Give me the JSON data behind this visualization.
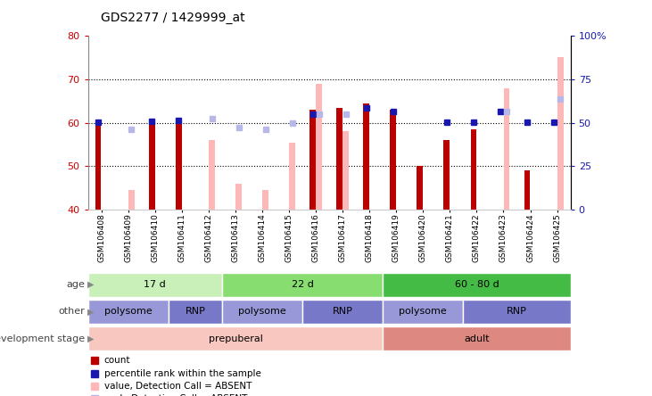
{
  "title": "GDS2277 / 1429999_at",
  "samples": [
    "GSM106408",
    "GSM106409",
    "GSM106410",
    "GSM106411",
    "GSM106412",
    "GSM106413",
    "GSM106414",
    "GSM106415",
    "GSM106416",
    "GSM106417",
    "GSM106418",
    "GSM106419",
    "GSM106420",
    "GSM106421",
    "GSM106422",
    "GSM106423",
    "GSM106424",
    "GSM106425"
  ],
  "count_values": [
    60.5,
    null,
    60.1,
    60.5,
    null,
    null,
    null,
    null,
    63.0,
    63.5,
    64.5,
    63.0,
    50.2,
    56.0,
    58.5,
    null,
    49.0,
    null
  ],
  "rank_values": [
    60.2,
    null,
    60.3,
    60.5,
    null,
    null,
    null,
    null,
    62.0,
    null,
    63.5,
    62.5,
    null,
    60.2,
    60.2,
    62.5,
    60.2,
    60.2
  ],
  "absent_value": [
    null,
    44.5,
    null,
    null,
    56.0,
    46.0,
    44.5,
    55.5,
    69.0,
    58.0,
    null,
    null,
    null,
    null,
    null,
    68.0,
    null,
    75.0
  ],
  "absent_rank": [
    null,
    58.5,
    null,
    null,
    61.0,
    59.0,
    58.5,
    60.0,
    62.0,
    62.0,
    null,
    null,
    null,
    null,
    null,
    62.5,
    null,
    65.5
  ],
  "ylim": [
    40,
    80
  ],
  "yticks": [
    40,
    50,
    60,
    70,
    80
  ],
  "right_yticks": [
    0,
    25,
    50,
    75,
    100
  ],
  "right_ylim": [
    0,
    100
  ],
  "dotted_lines": [
    50,
    60,
    70
  ],
  "age_groups": [
    {
      "label": "17 d",
      "start": 0,
      "end": 5,
      "color": "#c8f0b8"
    },
    {
      "label": "22 d",
      "start": 5,
      "end": 11,
      "color": "#88dd70"
    },
    {
      "label": "60 - 80 d",
      "start": 11,
      "end": 18,
      "color": "#44bb44"
    }
  ],
  "other_groups": [
    {
      "label": "polysome",
      "start": 0,
      "end": 3,
      "color": "#9898d8"
    },
    {
      "label": "RNP",
      "start": 3,
      "end": 5,
      "color": "#7878c8"
    },
    {
      "label": "polysome",
      "start": 5,
      "end": 8,
      "color": "#9898d8"
    },
    {
      "label": "RNP",
      "start": 8,
      "end": 11,
      "color": "#7878c8"
    },
    {
      "label": "polysome",
      "start": 11,
      "end": 14,
      "color": "#9898d8"
    },
    {
      "label": "RNP",
      "start": 14,
      "end": 18,
      "color": "#7878c8"
    }
  ],
  "dev_groups": [
    {
      "label": "prepuberal",
      "start": 0,
      "end": 11,
      "color": "#f8c8c0"
    },
    {
      "label": "adult",
      "start": 11,
      "end": 18,
      "color": "#dd8880"
    }
  ],
  "bar_color_count": "#bb0000",
  "bar_color_absent": "#ffb8b8",
  "dot_color_rank": "#1818b0",
  "dot_color_absent_rank": "#b8b8e8",
  "label_color_count": "#cc0000",
  "label_color_rank": "#1818b0",
  "legend_items": [
    {
      "color": "#bb0000",
      "label": "count"
    },
    {
      "color": "#1818b0",
      "label": "percentile rank within the sample"
    },
    {
      "color": "#ffb8b8",
      "label": "value, Detection Call = ABSENT"
    },
    {
      "color": "#b8b8e8",
      "label": "rank, Detection Call = ABSENT"
    }
  ]
}
